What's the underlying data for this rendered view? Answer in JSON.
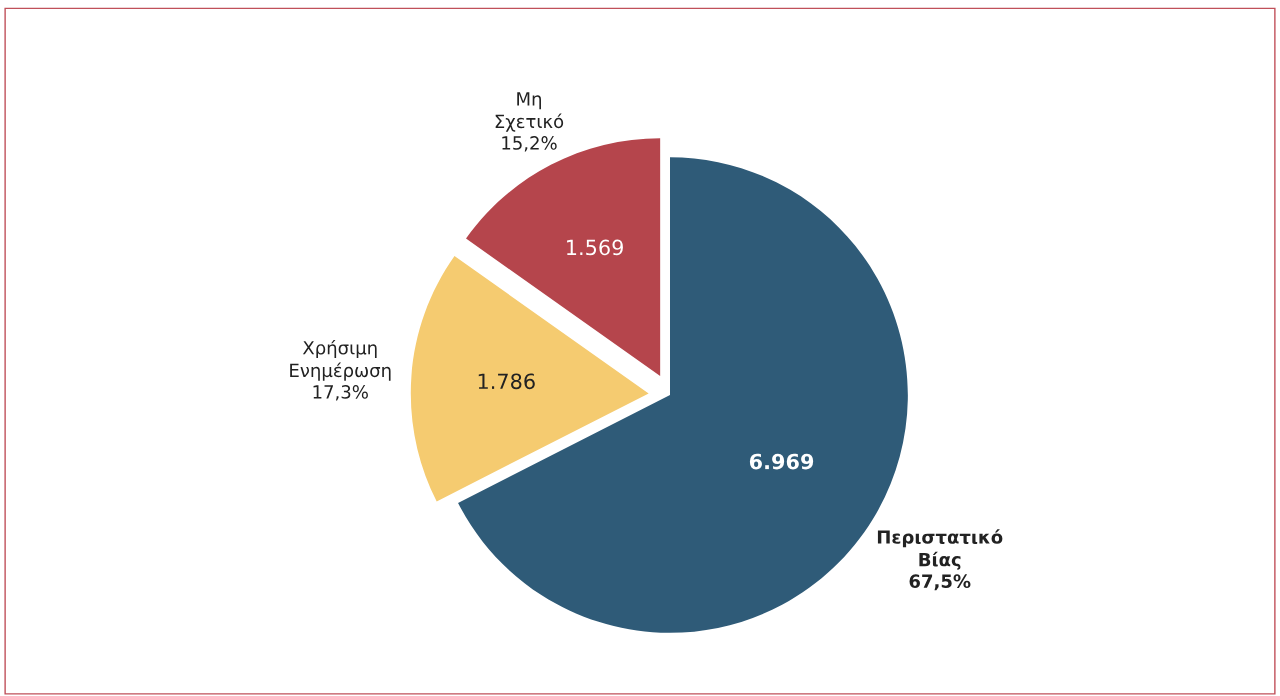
{
  "chart_data": {
    "type": "pie",
    "categories": [
      "Περιστατικό Βίας",
      "Χρήσιμη Ενημέρωση",
      "Μη Σχετικό"
    ],
    "values": [
      6969,
      1786,
      1569
    ],
    "value_labels": [
      "6.969",
      "1.786",
      "1.569"
    ],
    "colors": [
      "#2f5b78",
      "#f5cb70",
      "#b5454c"
    ],
    "annotations": [
      "67,5%",
      "17,3%",
      "15,2%"
    ]
  }
}
